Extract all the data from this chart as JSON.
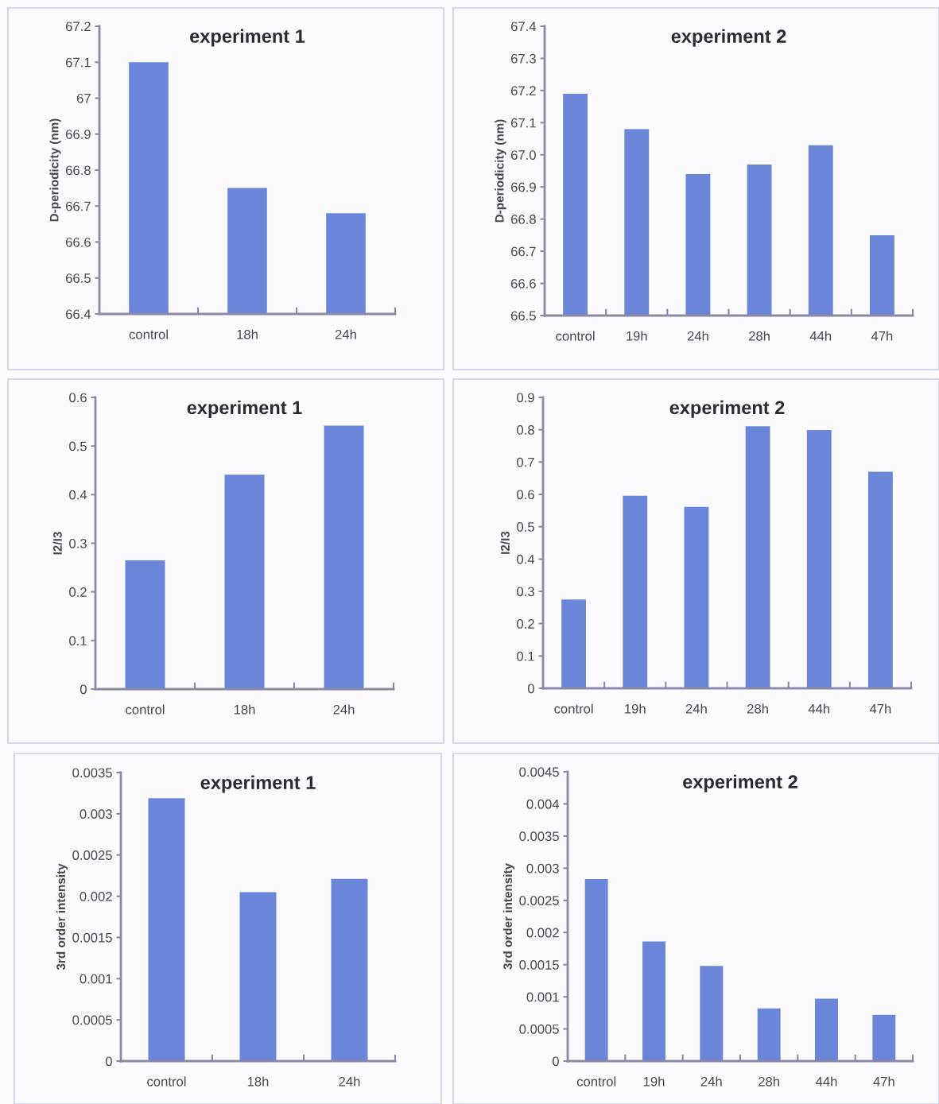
{
  "chart_data": [
    {
      "type": "bar",
      "title": "experiment 1",
      "ylabel": "D-periodicity (nm)",
      "categories": [
        "control",
        "18h",
        "24h"
      ],
      "values": [
        67.1,
        66.75,
        66.68
      ],
      "color": "#6b85d9",
      "ylim": [
        66.4,
        67.2
      ],
      "yticks": [
        66.4,
        66.5,
        66.6,
        66.7,
        66.8,
        66.9,
        67,
        67.1,
        67.2
      ],
      "grid": false,
      "legend": false
    },
    {
      "type": "bar",
      "title": "experiment 2",
      "ylabel": "D-periodicity (nm)",
      "categories": [
        "control",
        "19h",
        "24h",
        "28h",
        "44h",
        "47h"
      ],
      "values": [
        67.19,
        67.08,
        66.94,
        66.97,
        67.03,
        66.75
      ],
      "color": "#6b85d9",
      "ylim": [
        66.5,
        67.4
      ],
      "yticks": [
        66.5,
        66.6,
        66.7,
        66.8,
        66.9,
        {
          "value": 67.0,
          "label": "67.0"
        },
        67.1,
        67.2,
        67.3,
        67.4
      ],
      "grid": false,
      "legend": false
    },
    {
      "type": "bar",
      "title": "experiment 1",
      "ylabel": "I2/I3",
      "categories": [
        "control",
        "18h",
        "24h"
      ],
      "values": [
        0.265,
        0.441,
        0.542
      ],
      "color": "#6b85d9",
      "ylim": [
        0,
        0.6
      ],
      "yticks": [
        0,
        0.1,
        0.2,
        0.3,
        0.4,
        0.5,
        0.6
      ],
      "grid": false,
      "legend": false
    },
    {
      "type": "bar",
      "title": "experiment 2",
      "ylabel": "I2/I3",
      "categories": [
        "control",
        "19h",
        "24h",
        "28h",
        "44h",
        "47h"
      ],
      "values": [
        0.275,
        0.596,
        0.561,
        0.811,
        0.799,
        0.67
      ],
      "color": "#6b85d9",
      "ylim": [
        0,
        0.9
      ],
      "yticks": [
        0,
        0.1,
        0.2,
        0.3,
        0.4,
        0.5,
        0.6,
        0.7,
        0.8,
        0.9
      ],
      "grid": false,
      "legend": false
    },
    {
      "type": "bar",
      "title": "experiment 1",
      "ylabel": "3rd order intensity",
      "categories": [
        "control",
        "18h",
        "24h"
      ],
      "values": [
        0.00319,
        0.00205,
        0.00221
      ],
      "color": "#6b85d9",
      "ylim": [
        0,
        0.0035
      ],
      "yticks": [
        0,
        0.0005,
        0.001,
        0.0015,
        0.002,
        0.0025,
        0.003,
        0.0035
      ],
      "grid": false,
      "legend": false
    },
    {
      "type": "bar",
      "title": "experiment 2",
      "ylabel": "3rd order intensity",
      "categories": [
        "control",
        "19h",
        "24h",
        "28h",
        "44h",
        "47h"
      ],
      "values": [
        0.00283,
        0.00186,
        0.00148,
        0.00082,
        0.00097,
        0.00072
      ],
      "color": "#6b85d9",
      "ylim": [
        0,
        0.0045
      ],
      "yticks": [
        0,
        0.0005,
        0.001,
        0.0015,
        0.002,
        0.0025,
        0.003,
        0.0035,
        0.004,
        0.0045
      ],
      "grid": false,
      "legend": false
    }
  ]
}
